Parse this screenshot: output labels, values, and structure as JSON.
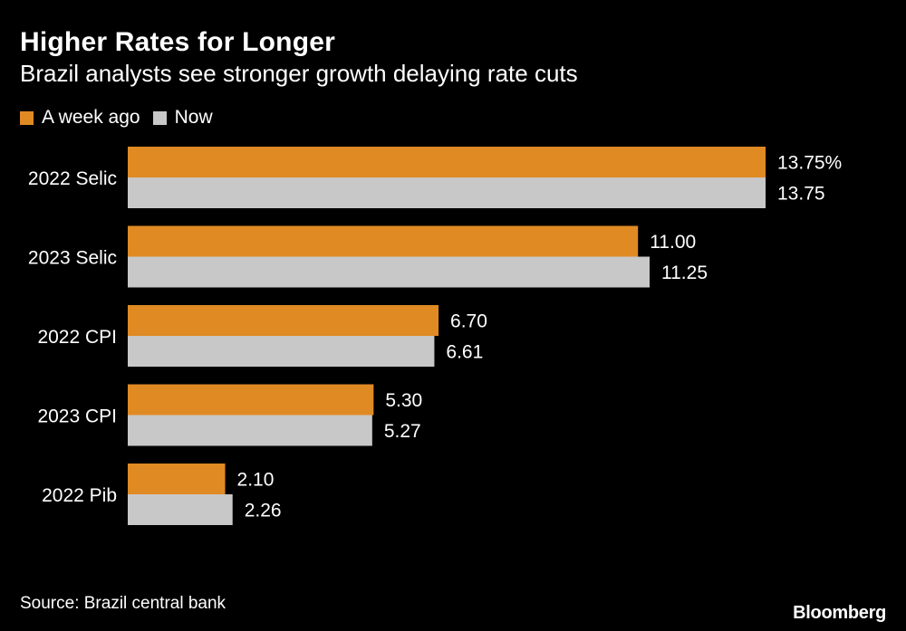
{
  "header": {
    "title": "Higher Rates for Longer",
    "subtitle": "Brazil analysts see stronger growth delaying rate cuts"
  },
  "legend": [
    {
      "label": "A week ago",
      "color": "#e08a24"
    },
    {
      "label": "Now",
      "color": "#c8c8c8"
    }
  ],
  "chart_data": {
    "type": "bar",
    "orientation": "horizontal",
    "title": "Higher Rates for Longer",
    "subtitle": "Brazil analysts see stronger growth delaying rate cuts",
    "categories": [
      "2022 Selic",
      "2023 Selic",
      "2022 CPI",
      "2023 CPI",
      "2022 Pib"
    ],
    "series": [
      {
        "name": "A week ago",
        "color": "#e08a24",
        "values": [
          13.75,
          11.0,
          6.7,
          5.3,
          2.1
        ],
        "labels": [
          "13.75%",
          "11.00",
          "6.70",
          "5.30",
          "2.10"
        ]
      },
      {
        "name": "Now",
        "color": "#c8c8c8",
        "values": [
          13.75,
          11.25,
          6.61,
          5.27,
          2.26
        ],
        "labels": [
          "13.75",
          "11.25",
          "6.61",
          "5.27",
          "2.26"
        ]
      }
    ],
    "xlim": [
      0,
      13.75
    ],
    "grid": false,
    "legend_position": "top-left"
  },
  "footer": {
    "source": "Source: Brazil central bank",
    "brand": "Bloomberg"
  }
}
